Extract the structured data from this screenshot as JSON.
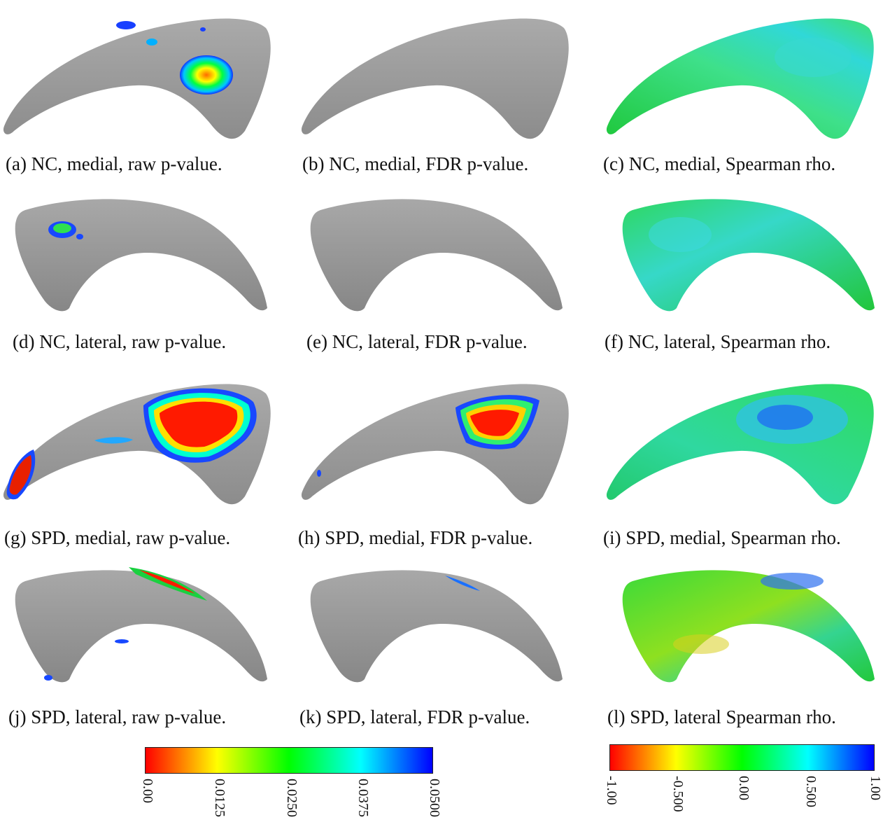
{
  "panels": [
    {
      "caption": "(a) NC, medial, raw p-value.",
      "shape": "medial",
      "colormap": "pvalue"
    },
    {
      "caption": "(b) NC, medial, FDR p-value.",
      "shape": "medial",
      "colormap": "pvalue"
    },
    {
      "caption": "(c) NC, medial, Spearman rho.",
      "shape": "medial",
      "colormap": "rho"
    },
    {
      "caption": "(d) NC, lateral, raw p-value.",
      "shape": "lateral",
      "colormap": "pvalue"
    },
    {
      "caption": "(e) NC, lateral, FDR p-value.",
      "shape": "lateral",
      "colormap": "pvalue"
    },
    {
      "caption": "(f) NC, lateral, Spearman rho.",
      "shape": "lateral",
      "colormap": "rho"
    },
    {
      "caption": "(g) SPD, medial, raw p-value.",
      "shape": "medial",
      "colormap": "pvalue"
    },
    {
      "caption": "(h) SPD, medial, FDR p-value.",
      "shape": "medial",
      "colormap": "pvalue"
    },
    {
      "caption": "(i) SPD, medial, Spearman rho.",
      "shape": "medial",
      "colormap": "rho"
    },
    {
      "caption": "(j) SPD, lateral, raw p-value.",
      "shape": "lateral",
      "colormap": "pvalue"
    },
    {
      "caption": "(k) SPD, lateral, FDR p-value.",
      "shape": "lateral",
      "colormap": "pvalue"
    },
    {
      "caption": "(l) SPD, lateral Spearman rho.",
      "shape": "lateral",
      "colormap": "rho"
    }
  ],
  "colorbars": {
    "pvalue": {
      "ticks": [
        "0.00",
        "0.0125",
        "0.0250",
        "0.0375",
        "0.0500"
      ],
      "colors": [
        "#ff0000",
        "#ffff00",
        "#00ff00",
        "#00ffff",
        "#0000ff"
      ]
    },
    "rho": {
      "ticks": [
        "-1.00",
        "-0.500",
        "0.00",
        "0.500",
        "1.00"
      ],
      "colors": [
        "#ff0000",
        "#ffff00",
        "#00ff00",
        "#00ffff",
        "#0000ff"
      ]
    }
  },
  "colors": {
    "surface_gray": "#9a9a9a",
    "surface_rho_base": "#2fd64a"
  }
}
